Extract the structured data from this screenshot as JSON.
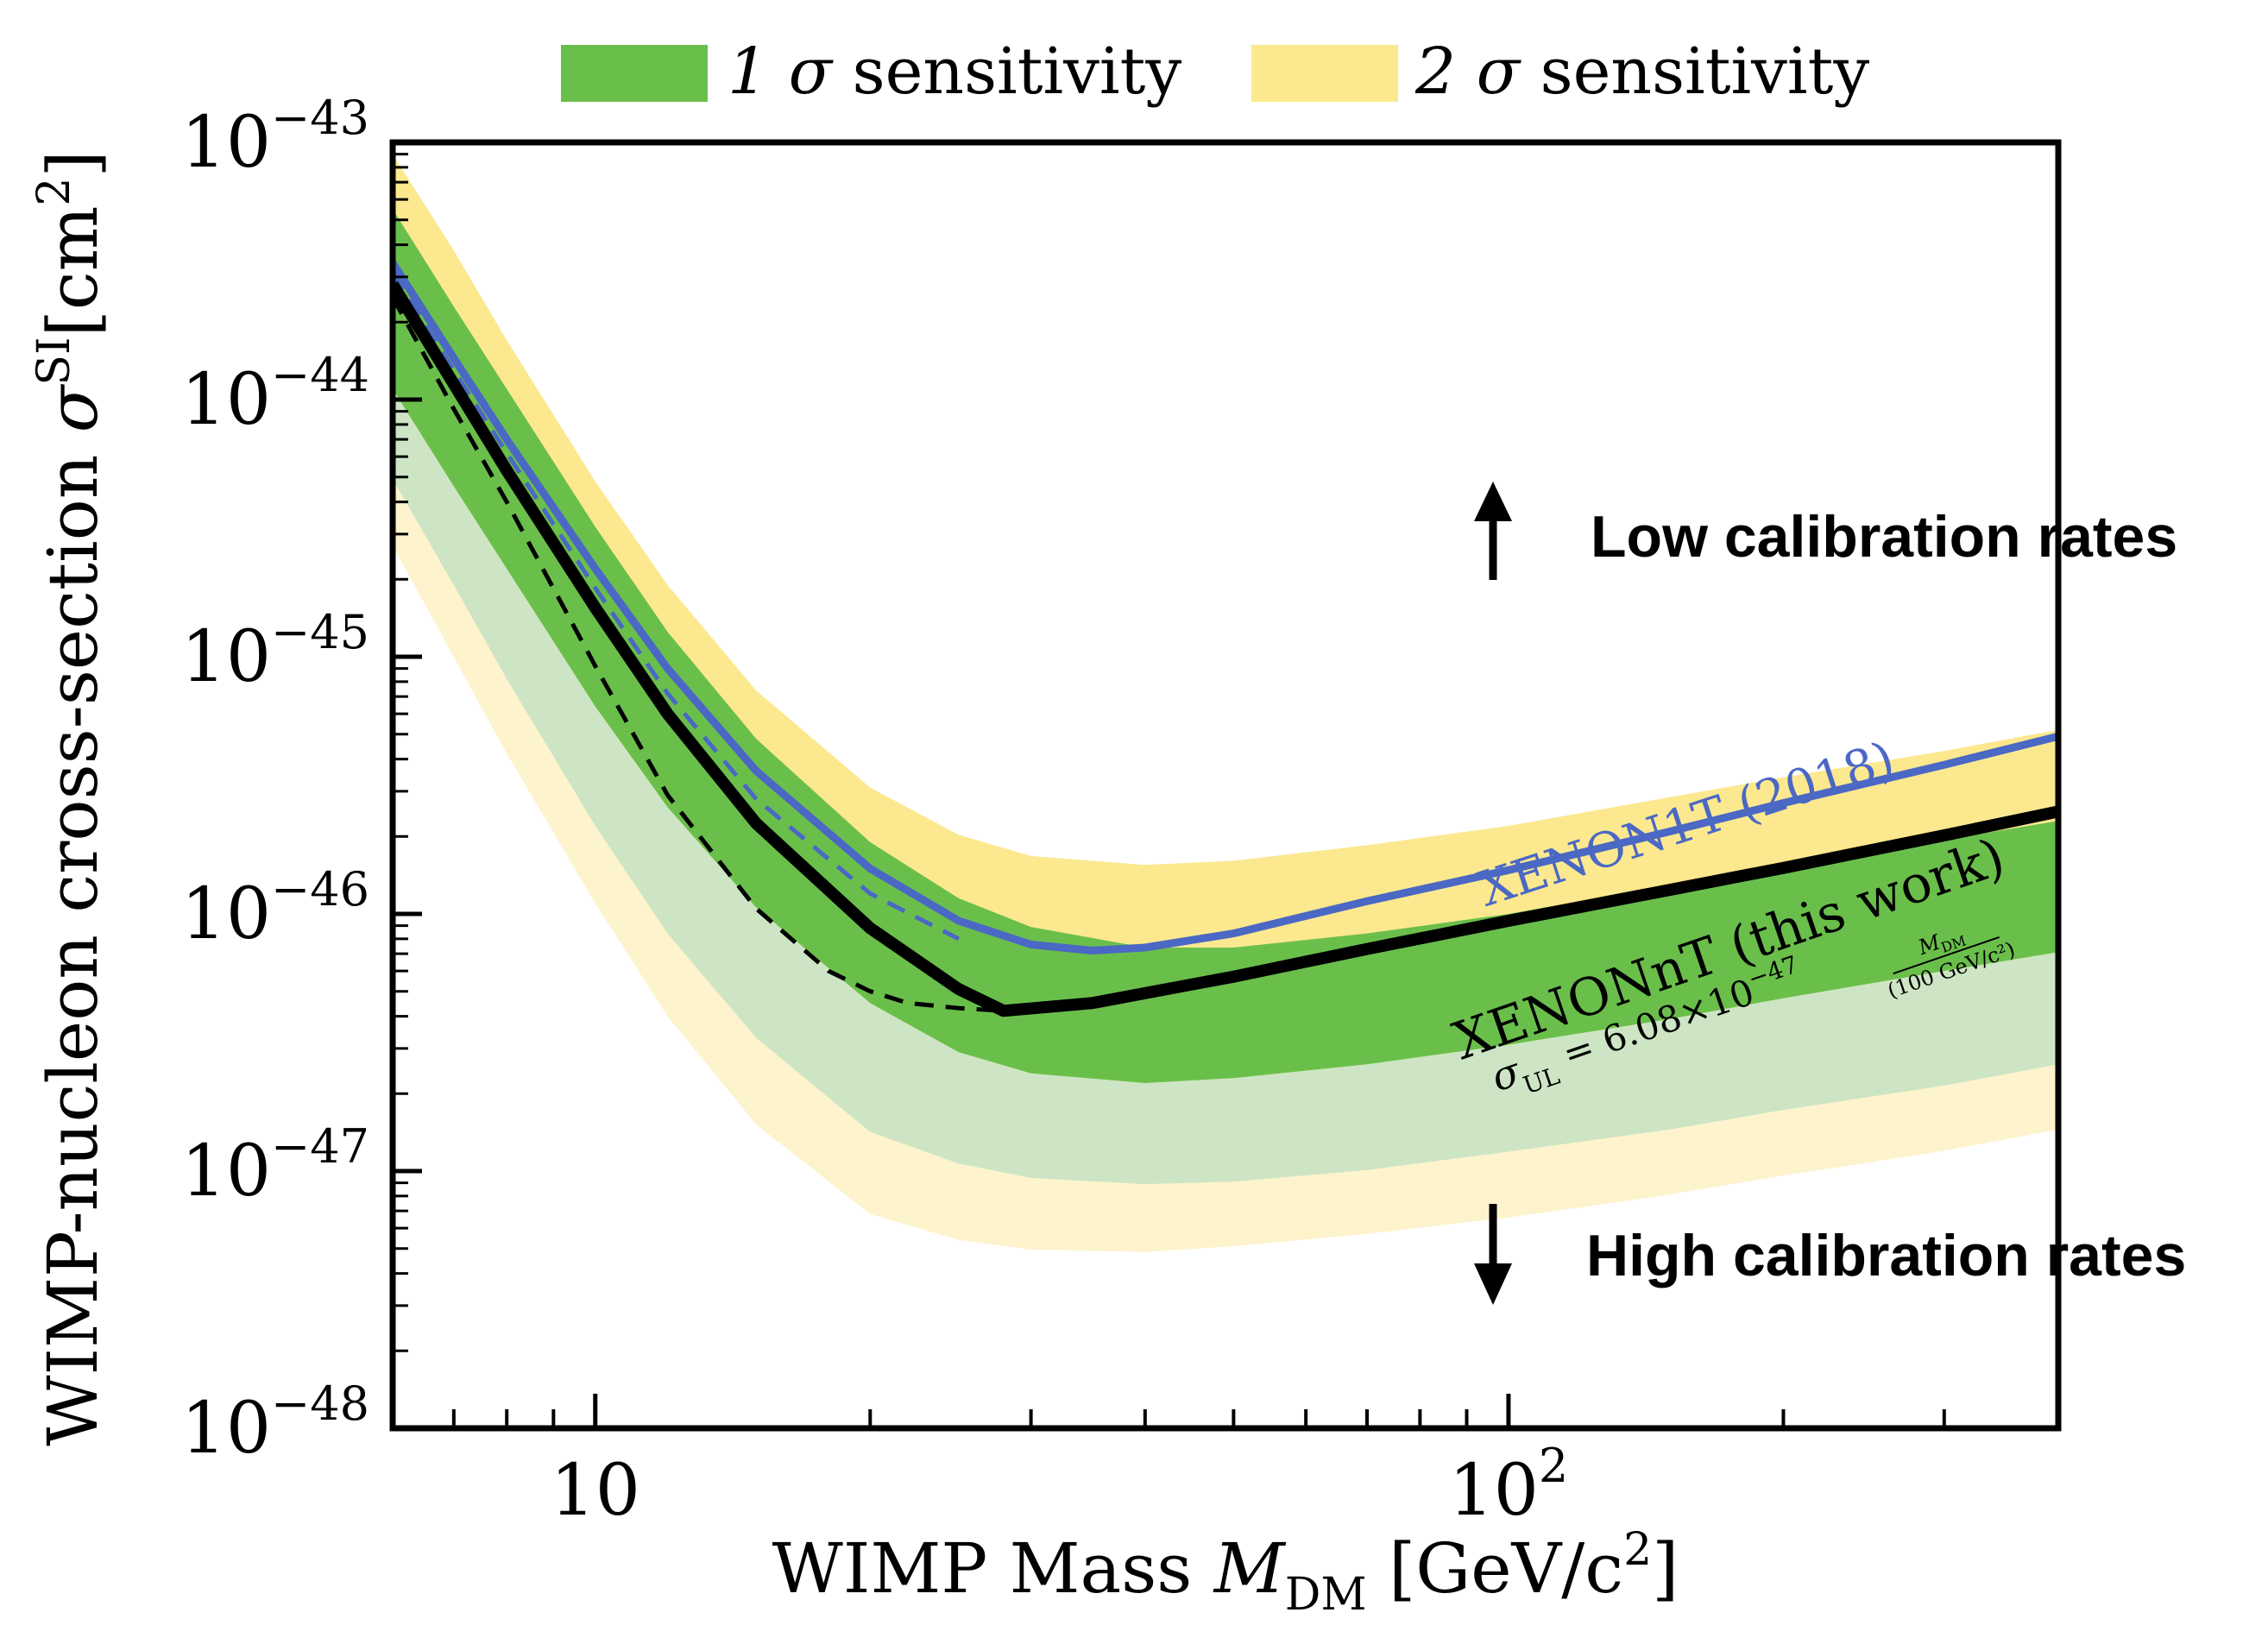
{
  "chart_data": {
    "type": "line",
    "x_scale": "log",
    "y_scale": "log",
    "xlim": [
      6,
      400
    ],
    "ylim": [
      1e-48,
      1e-43
    ],
    "xlabel_main": "WIMP Mass ",
    "xlabel_sym": "M",
    "xlabel_sub": "DM",
    "xlabel_unit": " [GeV/c",
    "xlabel_sup": "2",
    "xlabel_end": "]",
    "ylabel_main": "WIMP-nucleon cross-section ",
    "ylabel_sym": "σ",
    "ylabel_sup": "SI",
    "ylabel_unit": "[cm",
    "ylabel_sup2": "2",
    "ylabel_end": "]",
    "x_ticks": [
      {
        "value": 10,
        "base": "10",
        "exp": ""
      },
      {
        "value": 100,
        "base": "10",
        "exp": "2"
      }
    ],
    "y_ticks": [
      {
        "value": 1e-43,
        "base": "10",
        "exp": "−43"
      },
      {
        "value": 1e-44,
        "base": "10",
        "exp": "−44"
      },
      {
        "value": 1e-45,
        "base": "10",
        "exp": "−45"
      },
      {
        "value": 1e-46,
        "base": "10",
        "exp": "−46"
      },
      {
        "value": 1e-47,
        "base": "10",
        "exp": "−47"
      },
      {
        "value": 1e-48,
        "base": "10",
        "exp": "−48"
      }
    ],
    "legend": [
      {
        "label": "1σ sensitivity",
        "sym": "1 σ",
        "text": " sensitivity",
        "color": "#6abf4b"
      },
      {
        "label": "2σ sensitivity",
        "sym": "2 σ",
        "text": " sensitivity",
        "color": "#fce88f"
      }
    ],
    "bands": {
      "x": [
        6,
        7,
        8,
        10,
        12,
        15,
        20,
        25,
        30,
        40,
        50,
        70,
        100,
        150,
        200,
        300,
        400
      ],
      "two_sigma_upper": [
        9e-44,
        3.8e-44,
        1.7e-44,
        4.8e-45,
        1.9e-45,
        7.4e-46,
        3.1e-46,
        2.03e-46,
        1.68e-46,
        1.55e-46,
        1.61e-46,
        1.85e-46,
        2.2e-46,
        2.84e-46,
        3.4e-46,
        4.3e-46,
        5.2e-46
      ],
      "one_sigma_upper": [
        5.5e-44,
        2.3e-44,
        1.1e-44,
        3.2e-45,
        1.25e-45,
        4.8e-46,
        1.9e-46,
        1.15e-46,
        8.9e-47,
        7.4e-47,
        7.4e-47,
        8.4e-47,
        1e-46,
        1.29e-46,
        1.54e-46,
        1.94e-46,
        2.3e-46
      ],
      "median": [
        1.1e-44,
        4.6e-45,
        2.2e-45,
        6.4e-46,
        2.6e-46,
        1.06e-46,
        4.5e-47,
        2.9e-47,
        2.4e-47,
        2.2e-47,
        2.3e-47,
        2.6e-47,
        3.1e-47,
        3.9e-47,
        4.7e-47,
        6e-47,
        7.1e-47
      ],
      "one_sigma_lower": [
        4.9e-45,
        1.9e-45,
        8.2e-46,
        2.2e-46,
        8.4e-47,
        3.3e-47,
        1.42e-47,
        1.07e-47,
        9.4e-48,
        8.9e-48,
        9.1e-48,
        1.01e-47,
        1.19e-47,
        1.45e-47,
        1.73e-47,
        2.15e-47,
        2.6e-47
      ],
      "two_sigma_lower": [
        2.7e-45,
        1e-45,
        4.2e-46,
        1.1e-46,
        4e-47,
        1.52e-47,
        6.8e-48,
        5.4e-48,
        4.95e-48,
        4.85e-48,
        5.1e-48,
        5.7e-48,
        6.6e-48,
        8.1e-48,
        9.6e-48,
        1.2e-47,
        1.45e-47
      ]
    },
    "series": [
      {
        "name": "XENON1T (2018)",
        "style": "solid",
        "color": "#4a68c4",
        "x": [
          6,
          7,
          8,
          10,
          12,
          15,
          20,
          25,
          30,
          35,
          40,
          50,
          70,
          100,
          150,
          200,
          300,
          400
        ],
        "y": [
          3.4e-44,
          1.45e-44,
          7e-45,
          2.2e-45,
          9e-46,
          3.6e-46,
          1.5e-46,
          9.4e-47,
          7.6e-47,
          7.2e-47,
          7.4e-47,
          8.4e-47,
          1.12e-46,
          1.48e-46,
          2.09e-46,
          2.7e-46,
          3.8e-46,
          4.9e-46
        ]
      },
      {
        "name": "",
        "style": "dashed",
        "color": "#4a68c4",
        "x": [
          6,
          7,
          8,
          10,
          12,
          15,
          20,
          25
        ],
        "y": [
          3.1e-44,
          1.3e-44,
          6.2e-45,
          1.85e-45,
          7.2e-46,
          2.8e-46,
          1.2e-46,
          8e-47
        ]
      },
      {
        "name": "XENONnT (this work)",
        "style": "solid",
        "color": "#000000",
        "x": [
          6,
          7,
          8,
          10,
          12,
          15,
          20,
          25,
          28,
          35,
          50,
          70,
          100,
          150,
          200,
          300,
          400
        ],
        "y": [
          2.8e-44,
          1.15e-44,
          5.3e-45,
          1.55e-45,
          6e-46,
          2.25e-46,
          8.8e-47,
          5.1e-47,
          4.2e-47,
          4.5e-47,
          5.7e-47,
          7.3e-47,
          9.4e-47,
          1.24e-46,
          1.51e-46,
          2.02e-46,
          2.5e-46
        ]
      },
      {
        "name": "",
        "style": "dashed",
        "color": "#000000",
        "x": [
          6,
          7,
          8,
          10,
          12,
          15,
          18,
          20,
          22,
          25,
          28
        ],
        "y": [
          2.5e-44,
          9.2e-45,
          4e-45,
          9.2e-46,
          2.9e-46,
          1.05e-46,
          6e-47,
          5e-47,
          4.5e-47,
          4.3e-47,
          4.2e-47
        ]
      }
    ],
    "annotations": {
      "xenon1t_label": "XENON1T (2018)",
      "xenonnt_label": "XENONnT (this work)",
      "formula_sym": "σ",
      "formula_sub": "UL",
      "formula_eq": " = 6.08×10",
      "formula_exp": "−47",
      "formula_num": "M",
      "formula_num_sub": "DM",
      "formula_den": "(100 GeV/c²)",
      "low_rates": "Low calibration rates",
      "high_rates": "High calibration rates"
    },
    "colors": {
      "one_sigma_dark": "#6abf4b",
      "one_sigma_light": "#cde5c4",
      "two_sigma_dark": "#fce88f",
      "two_sigma_light": "#fdf3cc",
      "xenon1t": "#4a68c4",
      "xenonnt": "#000000"
    }
  }
}
